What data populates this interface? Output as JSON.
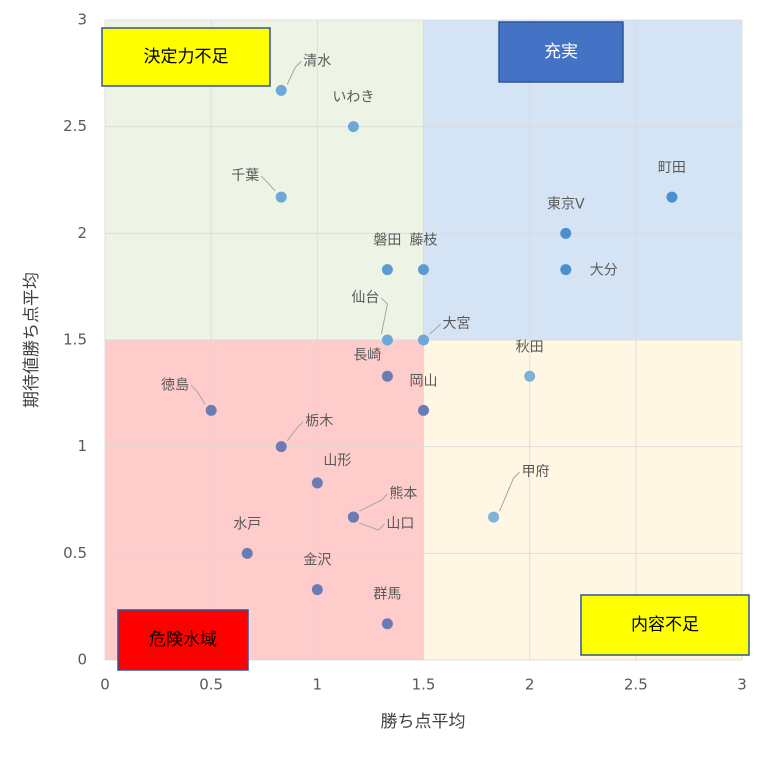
{
  "chart_data": {
    "type": "scatter",
    "xlabel": "勝ち点平均",
    "ylabel": "期待値勝ち点平均",
    "xlim": [
      0,
      3
    ],
    "ylim": [
      0,
      3
    ],
    "xticks": [
      0,
      0.5,
      1,
      1.5,
      2,
      2.5,
      3
    ],
    "yticks": [
      0,
      0.5,
      1,
      1.5,
      2,
      2.5,
      3
    ],
    "grid": true,
    "regions": [
      {
        "name": "決定力不足",
        "x": [
          0,
          1.5
        ],
        "y": [
          1.5,
          3
        ],
        "color": "#edf4e6",
        "label_color": "#ffff00"
      },
      {
        "name": "充実",
        "x": [
          1.5,
          3
        ],
        "y": [
          1.5,
          3
        ],
        "color": "#d5e4f4",
        "label_color": "#4472c4"
      },
      {
        "name": "危険水域",
        "x": [
          0,
          1.5
        ],
        "y": [
          0,
          1.5
        ],
        "color": "#ffcccc",
        "label_color": "#ff0000"
      },
      {
        "name": "内容不足",
        "x": [
          1.5,
          3
        ],
        "y": [
          0,
          1.5
        ],
        "color": "#fff6e3",
        "label_color": "#ffff00"
      }
    ],
    "labels": [
      "清水",
      "いわき",
      "千葉",
      "町田",
      "東京V",
      "大分",
      "磐田",
      "藤枝",
      "仙台",
      "大宮",
      "秋田",
      "長崎",
      "岡山",
      "徳島",
      "栃木",
      "山形",
      "熊本",
      "山口",
      "甲府",
      "水戸",
      "金沢",
      "群馬"
    ],
    "x": [
      0.83,
      1.17,
      0.83,
      2.67,
      2.17,
      2.17,
      1.33,
      1.5,
      1.33,
      1.5,
      2.0,
      1.33,
      1.5,
      0.5,
      0.83,
      1.0,
      1.17,
      1.17,
      1.83,
      0.67,
      1.0,
      1.33
    ],
    "y": [
      2.67,
      2.5,
      2.17,
      2.17,
      2.0,
      1.83,
      1.83,
      1.83,
      1.5,
      1.5,
      1.33,
      1.33,
      1.17,
      1.17,
      1.0,
      0.83,
      0.67,
      0.67,
      0.67,
      0.5,
      0.33,
      0.17
    ],
    "colors": [
      "#6fa8d6",
      "#6fa8d6",
      "#6fa8d6",
      "#4a90d0",
      "#4a90d0",
      "#4a90d0",
      "#5b9bd5",
      "#5b9bd5",
      "#6fa8d6",
      "#6fa8d6",
      "#7eb3d8",
      "#6b7bb5",
      "#6b7bb5",
      "#6b7bb5",
      "#6b7bb5",
      "#6b7bb5",
      "#6b7bb5",
      "#6b7bb5",
      "#7eb3d8",
      "#6b7bb5",
      "#6b7bb5",
      "#6b7bb5"
    ]
  }
}
